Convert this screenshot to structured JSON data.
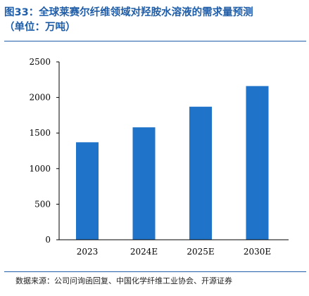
{
  "figure": {
    "title_line1": "图33：全球莱赛尔纤维领域对羟胺水溶液的需求量预测",
    "title_line2": "（单位：万吨）",
    "source": "数据来源：公司问询函回复、中国化学纤维工业协会、开源证券"
  },
  "colors": {
    "bar": "#1f73c8",
    "accent": "#1f5da8"
  },
  "chart_data": {
    "type": "bar",
    "categories": [
      "2023",
      "2024E",
      "2025E",
      "2030E"
    ],
    "values": [
      1370,
      1580,
      1870,
      2160
    ],
    "ylim": [
      0,
      2500
    ],
    "yticks": [
      0,
      500,
      1000,
      1500,
      2000,
      2500
    ],
    "grid": false,
    "legend": "none"
  }
}
